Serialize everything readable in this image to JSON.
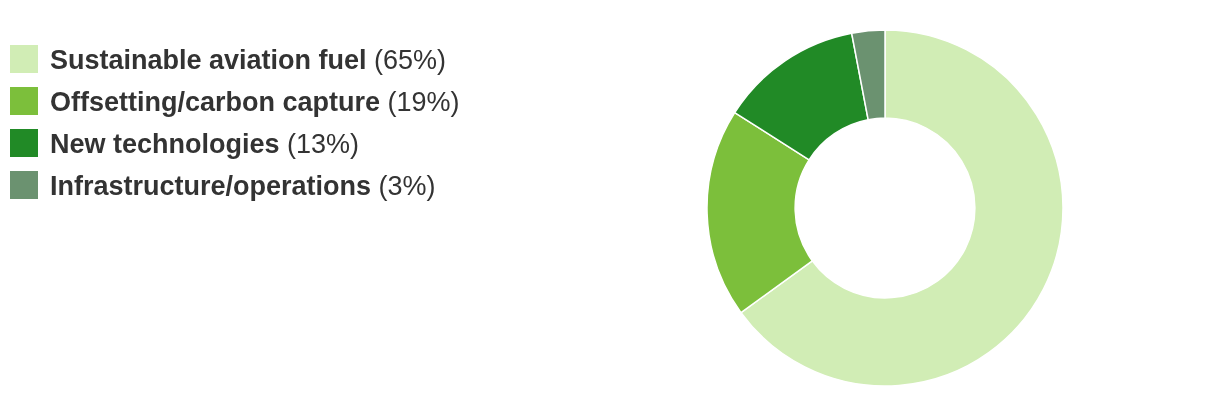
{
  "chart_data": {
    "type": "donut",
    "categories": [
      "Sustainable aviation fuel",
      "Offsetting/carbon capture",
      "New technologies",
      "Infrastructure/operations"
    ],
    "values": [
      65,
      19,
      13,
      3
    ],
    "value_labels": [
      "(65%)",
      "(19%)",
      "(13%)",
      "(3%)"
    ],
    "colors": [
      "#d1edb5",
      "#7cbf3b",
      "#218a26",
      "#6b9270"
    ],
    "legend": "left"
  }
}
